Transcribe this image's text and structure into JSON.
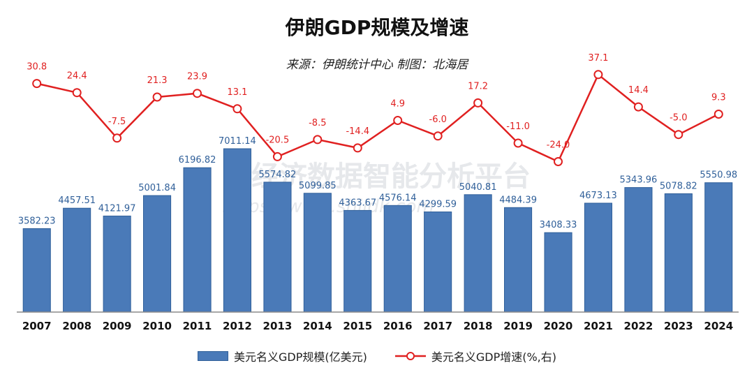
{
  "title": "伊朗GDP规模及增速",
  "subtitle": "来源：伊朗统计中心  制图：北海居",
  "watermark": {
    "text": "经济数据智能分析平台",
    "url": "https://www.shjjdk.com"
  },
  "colors": {
    "bar": "#4a7ab8",
    "bar_edge": "#2f5f99",
    "bar_label": "#2f5f99",
    "line": "#e02020",
    "line_label": "#e02020"
  },
  "legend": {
    "bar_label": "美元名义GDP规模(亿美元)",
    "line_label": "美元名义GDP增速(%,右)"
  },
  "chart_data": {
    "type": "bar+line",
    "title": "伊朗GDP规模及增速",
    "categories": [
      "2007",
      "2008",
      "2009",
      "2010",
      "2011",
      "2012",
      "2013",
      "2014",
      "2015",
      "2016",
      "2017",
      "2018",
      "2019",
      "2020",
      "2021",
      "2022",
      "2023",
      "2024"
    ],
    "series": [
      {
        "name": "美元名义GDP规模(亿美元)",
        "type": "bar",
        "axis": "left",
        "values": [
          3582.23,
          4457.51,
          4121.97,
          5001.84,
          6196.82,
          7011.14,
          5574.82,
          5099.85,
          4363.67,
          4576.14,
          4299.59,
          5040.81,
          4484.39,
          3408.33,
          4673.13,
          5343.96,
          5078.82,
          5550.98
        ],
        "labels": [
          "3582.23",
          "4457.51",
          "4121.97",
          "5001.84",
          "6196.82",
          "7011.14",
          "5574.82",
          "5099.85",
          "4363.67",
          "4576.14",
          "4299.59",
          "5040.81",
          "4484.39",
          "3408.33",
          "4673.13",
          "5343.96",
          "5078.82",
          "5550.98"
        ]
      },
      {
        "name": "美元名义GDP增速(%,右)",
        "type": "line",
        "axis": "right",
        "values": [
          30.8,
          24.4,
          -7.5,
          21.3,
          23.9,
          13.1,
          -20.5,
          -8.5,
          -14.4,
          4.9,
          -6.0,
          17.2,
          -11.0,
          -24.0,
          37.1,
          14.4,
          -5.0,
          9.3
        ],
        "labels": [
          "30.8",
          "24.4",
          "-7.5",
          "21.3",
          "23.9",
          "13.1",
          "-20.5",
          "-8.5",
          "-14.4",
          "4.9",
          "-6.0",
          "17.2",
          "-11.0",
          "-24.0",
          "37.1",
          "14.4",
          "-5.0",
          "9.3"
        ]
      }
    ],
    "bar_ylim": [
      0,
      8000
    ],
    "line_ylim": [
      -60,
      60
    ],
    "grid": false,
    "legend_position": "bottom"
  }
}
